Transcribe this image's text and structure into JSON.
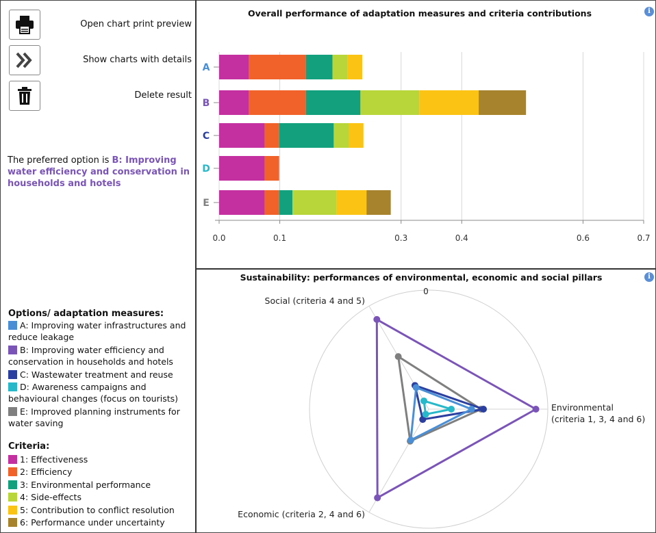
{
  "toolbar": {
    "print_label": "Open chart print preview",
    "details_label": "Show charts with details",
    "delete_label": "Delete result"
  },
  "result": {
    "prefix": "The preferred option is ",
    "highlight": "B: Improving water efficiency and conservation in households and hotels"
  },
  "options_legend": {
    "title": "Options/ adaptation measures:",
    "items": [
      {
        "label": "A: Improving water infrastructures and reduce leakage",
        "color": "#4a8fd6"
      },
      {
        "label": "B: Improving water efficiency and conservation in households and hotels",
        "color": "#7b54b8"
      },
      {
        "label": "C: Wastewater treatment and reuse",
        "color": "#2b3fa0"
      },
      {
        "label": "D: Awareness campaigns and behavioural changes (focus on tourists)",
        "color": "#27b8c9"
      },
      {
        "label": "E: Improved planning instruments for water saving",
        "color": "#7f7f7f"
      }
    ]
  },
  "criteria_legend": {
    "title": "Criteria:",
    "items": [
      {
        "label": "1: Effectiveness",
        "color": "#c4309f"
      },
      {
        "label": "2: Efficiency",
        "color": "#f0622a"
      },
      {
        "label": "3: Environmental performance",
        "color": "#13a07c"
      },
      {
        "label": "4: Side-effects",
        "color": "#b8d63a"
      },
      {
        "label": "5: Contribution to conflict resolution",
        "color": "#fbc314"
      },
      {
        "label": "6: Performance under uncertainty",
        "color": "#a8832e"
      }
    ]
  },
  "chart_data": [
    {
      "type": "bar",
      "orientation": "horizontal",
      "stacked": true,
      "title": "Overall performance of adaptation measures and criteria contributions",
      "categories": [
        "A",
        "B",
        "C",
        "D",
        "E"
      ],
      "category_colors": [
        "#4a8fd6",
        "#7b54b8",
        "#2b3fa0",
        "#27b8c9",
        "#7f7f7f"
      ],
      "xlim": [
        0,
        0.7
      ],
      "xticks": [
        "0.0",
        "0.1",
        "0.3",
        "0.4",
        "0.6",
        "0.7"
      ],
      "xtick_values": [
        0,
        0.1,
        0.3,
        0.4,
        0.6,
        0.7
      ],
      "grid": true,
      "series": [
        {
          "name": "1: Effectiveness",
          "color": "#c4309f",
          "values": [
            0.049,
            0.049,
            0.075,
            0.075,
            0.075
          ]
        },
        {
          "name": "2: Efficiency",
          "color": "#f0622a",
          "values": [
            0.094,
            0.094,
            0.024,
            0.024,
            0.024
          ]
        },
        {
          "name": "3: Environmental performance",
          "color": "#13a07c",
          "values": [
            0.044,
            0.09,
            0.09,
            0,
            0.022
          ]
        },
        {
          "name": "4: Side-effects",
          "color": "#b8d63a",
          "values": [
            0.025,
            0.097,
            0.025,
            0,
            0.073
          ]
        },
        {
          "name": "5: Contribution to conflict resolution",
          "color": "#fbc314",
          "values": [
            0.024,
            0.098,
            0.024,
            0,
            0.049
          ]
        },
        {
          "name": "6: Performance under uncertainty",
          "color": "#a8832e",
          "values": [
            0,
            0.078,
            0,
            0,
            0.04
          ]
        }
      ]
    },
    {
      "type": "radar",
      "title": "Sustainability: performances of environmental, economic and social pillars",
      "center_label": "0",
      "axes": [
        "Environmental (criteria 1, 3, 4 and 6)",
        "Economic (criteria 2, 4 and 6)",
        "Social (criteria 4 and 5)"
      ],
      "axis_labels_display": [
        [
          "Environmental",
          "(criteria 1, 3, 4 and 6)"
        ],
        [
          "Economic (criteria 2, 4 and 6)"
        ],
        [
          "Social (criteria 4 and 5)"
        ]
      ],
      "range": [
        0,
        1
      ],
      "series": [
        {
          "name": "A",
          "color": "#4a8fd6",
          "values": [
            0.36,
            0.3,
            0.21
          ]
        },
        {
          "name": "B",
          "color": "#7b54b8",
          "values": [
            0.9,
            0.86,
            0.87
          ]
        },
        {
          "name": "C",
          "color": "#2b3fa0",
          "values": [
            0.46,
            0.1,
            0.23
          ]
        },
        {
          "name": "D",
          "color": "#27b8c9",
          "values": [
            0.19,
            0.05,
            0.08
          ]
        },
        {
          "name": "E",
          "color": "#7f7f7f",
          "values": [
            0.44,
            0.31,
            0.51
          ]
        }
      ]
    }
  ]
}
